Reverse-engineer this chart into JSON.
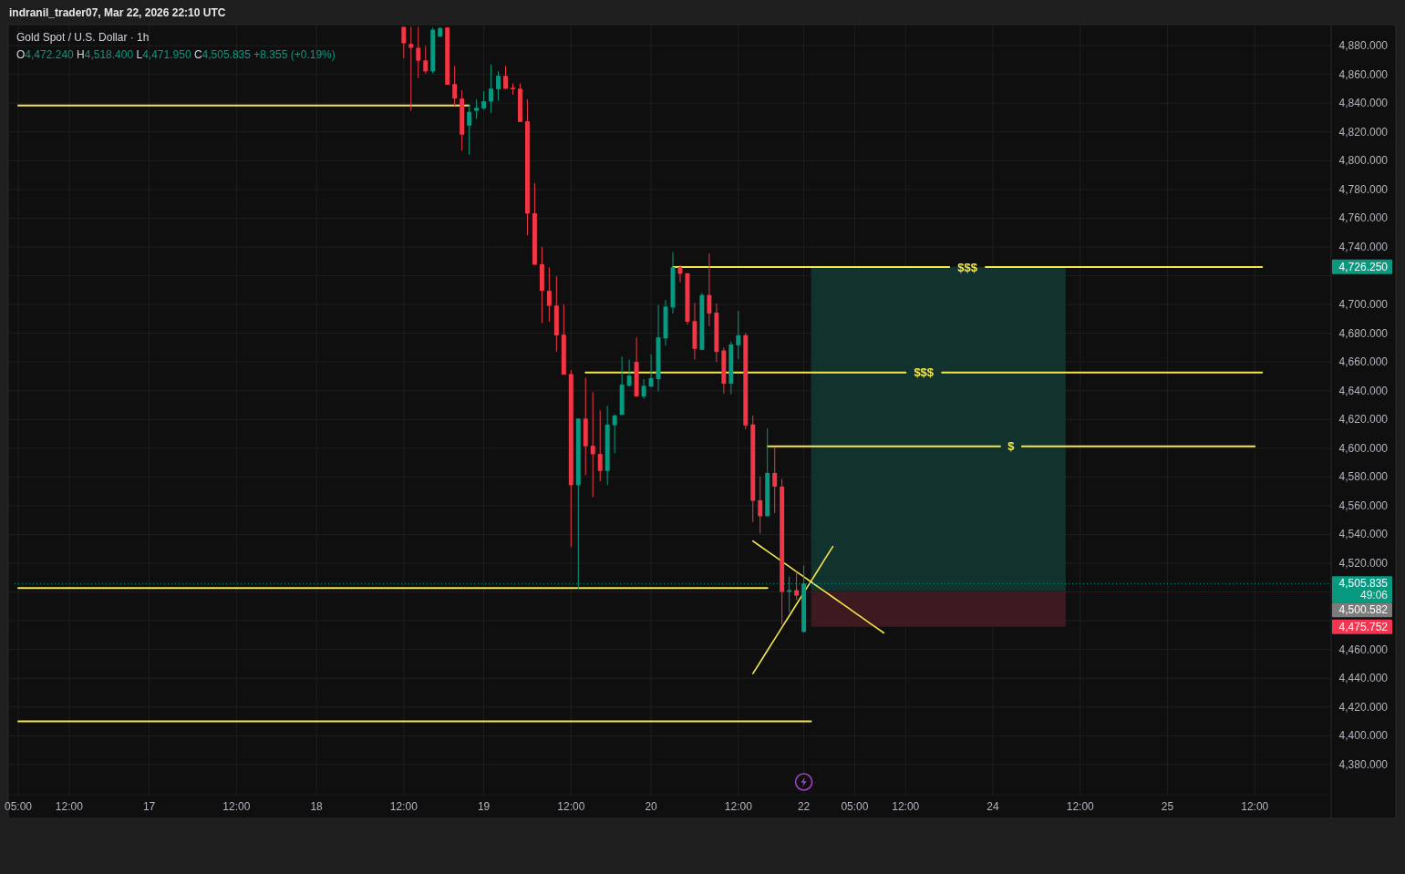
{
  "chart_data": {
    "type": "candlestick",
    "title": "Gold Spot / U.S. Dollar · 1h",
    "subtitle": "O4,472.240 H4,518.400 L4,471.950 C4,505.835 +8.355 (+0.19%)",
    "categories": [
      "05:00",
      null,
      null,
      null,
      null,
      null,
      null,
      "12:00",
      null,
      null,
      null,
      null,
      null,
      null,
      null,
      null,
      null,
      null,
      "17",
      null,
      null,
      null,
      null,
      null,
      null,
      null,
      null,
      null,
      null,
      null,
      "12:00",
      null,
      null,
      null,
      null,
      null,
      null,
      null,
      null,
      null,
      null,
      "18",
      null,
      null,
      null,
      null,
      null,
      null,
      null,
      null,
      null,
      null,
      null,
      "12:00",
      null,
      null,
      null,
      null,
      null,
      null,
      null,
      null,
      null,
      null,
      "19",
      null,
      null,
      null,
      null,
      null,
      null,
      null,
      null,
      null,
      null,
      null,
      "12:00",
      null,
      null,
      null,
      null,
      null,
      null,
      null,
      null,
      null,
      null,
      "20",
      null,
      null,
      null,
      null,
      null,
      null,
      null,
      null,
      null,
      null,
      null,
      "12:00",
      null,
      null,
      null,
      null,
      null,
      null,
      null,
      null,
      "22",
      null,
      null,
      null,
      null,
      null,
      null,
      "05:00",
      null,
      null,
      null,
      null,
      null,
      null,
      "12:00",
      null,
      null,
      null,
      null,
      null,
      null,
      null,
      null,
      null,
      null,
      null,
      "24",
      null,
      null,
      null,
      null,
      null,
      null,
      null,
      null,
      null,
      null,
      null,
      "12:00",
      null,
      null,
      null,
      null,
      null,
      null,
      null,
      null,
      null,
      null,
      null,
      "25",
      null,
      null,
      null,
      null,
      null,
      null,
      null,
      null,
      null,
      null,
      null,
      "12:00",
      null,
      null,
      null,
      null,
      null,
      null,
      null,
      null,
      null,
      null
    ],
    "ohlc": [
      null,
      null,
      null,
      null,
      null,
      null,
      null,
      null,
      null,
      null,
      null,
      null,
      null,
      null,
      null,
      null,
      null,
      null,
      null,
      null,
      null,
      null,
      null,
      null,
      null,
      null,
      null,
      null,
      null,
      null,
      null,
      null,
      null,
      null,
      null,
      null,
      null,
      null,
      null,
      null,
      null,
      null,
      null,
      null,
      null,
      null,
      null,
      null,
      null,
      null,
      null,
      null,
      null,
      [
        4893,
        4893,
        4871.2,
        4881.7
      ],
      [
        4881.2,
        4893,
        4834.7,
        4878.5
      ],
      [
        4878.5,
        4893,
        4857.5,
        4869.5
      ],
      [
        4869.7,
        4879.6,
        4860.6,
        4862.1
      ],
      [
        4862.1,
        4892.6,
        4860.6,
        4891.1
      ],
      [
        4886.3,
        4893,
        4885.9,
        4892.2
      ],
      [
        4892.6,
        4893,
        4852.8,
        4852.8
      ],
      [
        4853.3,
        4865.9,
        4837.9,
        4843.2
      ],
      [
        4843.2,
        4849.1,
        4807.0,
        4818.1
      ],
      [
        4824.4,
        4839.2,
        4804.2,
        4833.9
      ],
      [
        4834.7,
        4842.7,
        4829.1,
        4836.8
      ],
      [
        4836.4,
        4848.4,
        4835.4,
        4841.3
      ],
      [
        4841.1,
        4866.9,
        4833.3,
        4850.1
      ],
      [
        4849.7,
        4862.1,
        4841.7,
        4859.0
      ],
      [
        4859.0,
        4865.9,
        4849.7,
        4850.1
      ],
      [
        4850.7,
        4853.7,
        4845.9,
        4849.7
      ],
      [
        4850.1,
        4853.7,
        4826.9,
        4826.9
      ],
      [
        4827.4,
        4842.7,
        4748.0,
        4763.2
      ],
      [
        4763.4,
        4784.4,
        4727.6,
        4727.6
      ],
      [
        4728.0,
        4740.0,
        4687.0,
        4709.5
      ],
      [
        4709.5,
        4725.9,
        4688.0,
        4699.0
      ],
      [
        4699.2,
        4719.6,
        4667.0,
        4678.5
      ],
      [
        4679.0,
        4700.0,
        4651.2,
        4651.2
      ],
      [
        4651.6,
        4654.3,
        4531.2,
        4574.3
      ],
      [
        4574.3,
        4620.6,
        4502.1,
        4620.6
      ],
      [
        4620.6,
        4649.1,
        4581.3,
        4601.3
      ],
      [
        4601.7,
        4639.0,
        4565.9,
        4595.8
      ],
      [
        4596.0,
        4626.3,
        4576.9,
        4584.2
      ],
      [
        4584.2,
        4629.5,
        4574.3,
        4616.4
      ],
      [
        4616.0,
        4623.5,
        4596.4,
        4622.8
      ],
      [
        4623.2,
        4663.8,
        4623.2,
        4644.2
      ],
      [
        4643.4,
        4661.7,
        4642.8,
        4650.5
      ],
      [
        4660.0,
        4677.1,
        4636.0,
        4636.0
      ],
      [
        4636.0,
        4648.0,
        4634.3,
        4643.4
      ],
      [
        4642.8,
        4665.3,
        4642.8,
        4648.7
      ],
      [
        4648.0,
        4699.6,
        4639.6,
        4677.1
      ],
      [
        4676.4,
        4703.2,
        4671.2,
        4698.5
      ],
      [
        4697.9,
        4736.4,
        4693.7,
        4725.9
      ],
      [
        4725.9,
        4727.4,
        4715.4,
        4721.3
      ],
      [
        4721.7,
        4721.7,
        4685.9,
        4688.0
      ],
      [
        4688.4,
        4701.1,
        4661.7,
        4669.1
      ],
      [
        4668.4,
        4708.0,
        4668.4,
        4706.6
      ],
      [
        4706.6,
        4735.4,
        4684.9,
        4693.7
      ],
      [
        4694.3,
        4700.7,
        4660.0,
        4667.0
      ],
      [
        4668.0,
        4670.1,
        4638.1,
        4644.9
      ],
      [
        4644.9,
        4674.3,
        4637.5,
        4672.2
      ],
      [
        4671.6,
        4695.4,
        4662.1,
        4678.6
      ],
      [
        4678.6,
        4680.0,
        4613.3,
        4615.8
      ],
      [
        4616.5,
        4622.8,
        4548.5,
        4563.4
      ],
      [
        4563.8,
        4580.3,
        4540.7,
        4552.7
      ],
      [
        4552.7,
        4613.7,
        4552.7,
        4582.8
      ],
      [
        4582.8,
        4600.7,
        4554.8,
        4573.3
      ],
      [
        4573.3,
        4578.6,
        4477.5,
        4500.1
      ],
      [
        4500.1,
        4510.6,
        4485.9,
        4501.3
      ],
      [
        4501.3,
        4514.4,
        4494.4,
        4497.48
      ],
      [
        4472.24,
        4518.4,
        4471.95,
        4505.835
      ],
      null,
      null,
      null,
      null,
      null,
      null,
      null,
      null,
      null,
      null,
      null,
      null,
      null,
      null,
      null,
      null,
      null,
      null,
      null,
      null,
      null,
      null,
      null,
      null,
      null,
      null,
      null,
      null,
      null,
      null,
      null,
      null,
      null,
      null,
      null,
      null,
      null,
      null,
      null,
      null,
      null,
      null,
      null,
      null,
      null,
      null,
      null,
      null,
      null,
      null,
      null,
      null,
      null,
      null,
      null,
      null,
      null,
      null,
      null,
      null,
      null,
      null,
      null,
      null,
      null,
      null,
      null,
      null,
      null,
      null,
      null,
      null
    ],
    "colors": [
      null,
      null,
      null,
      null,
      null,
      null,
      null,
      null,
      null,
      null,
      null,
      null,
      null,
      null,
      null,
      null,
      null,
      null,
      null,
      null,
      null,
      null,
      null,
      null,
      null,
      null,
      null,
      null,
      null,
      null,
      null,
      null,
      null,
      null,
      null,
      null,
      null,
      null,
      null,
      null,
      null,
      null,
      null,
      null,
      null,
      null,
      null,
      null,
      null,
      null,
      null,
      null,
      null,
      "#f23645",
      "#f23645",
      "#f23645",
      "#f23645",
      "#089981",
      "#089981",
      "#f23645",
      "#f23645",
      "#f23645",
      "#089981",
      "#089981",
      "#089981",
      "#089981",
      "#089981",
      "#f23645",
      "#f23645",
      "#f23645",
      "#f23645",
      "#f23645",
      "#f23645",
      "#f23645",
      "#f23645",
      "#f23645",
      "#f23645",
      "#089981",
      "#f23645",
      "#f23645",
      "#f23645",
      "#089981",
      "#089981",
      "#089981",
      "#089981",
      "#f23645",
      "#089981",
      "#089981",
      "#089981",
      "#089981",
      "#089981",
      "#f23645",
      "#f23645",
      "#f23645",
      "#089981",
      "#f23645",
      "#f23645",
      "#f23645",
      "#089981",
      "#089981",
      "#f23645",
      "#f23645",
      "#f23645",
      "#089981",
      "#f23645",
      "#f23645",
      "#089981",
      "#f23645",
      "#089981",
      null,
      null,
      null,
      null,
      null,
      null,
      null,
      null,
      null,
      null,
      null,
      null,
      null,
      null,
      null,
      null,
      null,
      null,
      null,
      null,
      null,
      null,
      null,
      null,
      null,
      null,
      null,
      null,
      null,
      null,
      null,
      null,
      null,
      null,
      null,
      null,
      null,
      null,
      null,
      null,
      null,
      null,
      null,
      null,
      null,
      null,
      null,
      null,
      null,
      null,
      null,
      null,
      null,
      null,
      null,
      null,
      null,
      null,
      null,
      null,
      null,
      null,
      null,
      null,
      null,
      null,
      null,
      null,
      null,
      null,
      null,
      null
    ],
    "series": [
      {
        "type": "line",
        "color": "#f5e64c",
        "values": [
          4838.3,
          4838.3,
          4838.3,
          4838.3,
          4838.3,
          4838.3,
          4838.3,
          4838.3,
          4838.3,
          4838.3,
          4838.3,
          4838.3,
          4838.3,
          4838.3,
          4838.3,
          4838.3,
          4838.3,
          4838.3,
          4838.3,
          4838.3,
          4838.3,
          4838.3,
          4838.3,
          4838.3,
          4838.3,
          4838.3,
          4838.3,
          4838.3,
          4838.3,
          4838.3,
          4838.3,
          4838.3,
          4838.3,
          4838.3,
          4838.3,
          4838.3,
          4838.3,
          4838.3,
          4838.3,
          4838.3,
          4838.3,
          4838.3,
          4838.3,
          4838.3,
          4838.3,
          4838.3,
          4838.3,
          4838.3,
          4838.3,
          4838.3,
          4838.3,
          4838.3,
          4838.3,
          4838.3,
          4838.3,
          4838.3,
          4838.3,
          4838.3,
          4838.3,
          4838.3,
          4838.3,
          4838.3,
          4838.3,
          null,
          null,
          null,
          null,
          null,
          null,
          null,
          null,
          null,
          null,
          null,
          null,
          null,
          null,
          null,
          null,
          null,
          null,
          null,
          null,
          null,
          null,
          null,
          null,
          null,
          null,
          null,
          null,
          null,
          null,
          null,
          null,
          null,
          null,
          null,
          null,
          null,
          null,
          null,
          null,
          null,
          null,
          null,
          null,
          null,
          null,
          null,
          null,
          null,
          null,
          null,
          null,
          null,
          null,
          null,
          null,
          null,
          null,
          null,
          null,
          null,
          null,
          null,
          null,
          null,
          null,
          null,
          null,
          null,
          null,
          null,
          null,
          null,
          null,
          null,
          null,
          null,
          null,
          null,
          null,
          null,
          null,
          null,
          null,
          null,
          null,
          null,
          null,
          null,
          null,
          null,
          null,
          null,
          null,
          null,
          null,
          null,
          null,
          null,
          null,
          null,
          null,
          null,
          null,
          null,
          null,
          null,
          null,
          null,
          null,
          null,
          null,
          null,
          null,
          null,
          null,
          null,
          null
        ]
      },
      {
        "type": "line",
        "name": "$$$",
        "color": "#f5e64c",
        "values": [
          null,
          null,
          null,
          null,
          null,
          null,
          null,
          null,
          null,
          null,
          null,
          null,
          null,
          null,
          null,
          null,
          null,
          null,
          null,
          null,
          null,
          null,
          null,
          null,
          null,
          null,
          null,
          null,
          null,
          null,
          null,
          null,
          null,
          null,
          null,
          null,
          null,
          null,
          null,
          null,
          null,
          null,
          null,
          null,
          null,
          null,
          null,
          null,
          null,
          null,
          null,
          null,
          null,
          null,
          null,
          null,
          null,
          null,
          null,
          null,
          null,
          null,
          null,
          null,
          null,
          null,
          null,
          null,
          null,
          null,
          null,
          null,
          null,
          null,
          null,
          null,
          null,
          null,
          null,
          null,
          null,
          null,
          null,
          null,
          null,
          null,
          null,
          null,
          null,
          null,
          4726,
          4726,
          4726,
          4726,
          4726,
          4726,
          4726,
          4726,
          4726,
          4726,
          4726,
          4726,
          4726,
          4726,
          4726,
          4726,
          4726,
          4726,
          4726,
          4726,
          4726,
          4726,
          4726,
          4726,
          4726,
          4726,
          4726,
          4726,
          4726,
          4726,
          4726,
          4726,
          4726,
          4726,
          4726,
          4726,
          4726,
          4726,
          4726,
          null,
          null,
          null,
          null,
          4726,
          4726,
          4726,
          4726,
          4726,
          4726,
          4726,
          4726,
          4726,
          4726,
          4726,
          4726,
          4726,
          4726,
          4726,
          4726,
          4726,
          4726,
          4726,
          4726,
          4726,
          4726,
          4726,
          4726,
          4726,
          4726,
          4726,
          4726,
          4726,
          4726,
          4726,
          4726,
          4726,
          4726,
          4726,
          4726,
          4726,
          4726,
          4726,
          null,
          null,
          null,
          null,
          null,
          null,
          null,
          null,
          null
        ]
      },
      {
        "type": "line",
        "name": "$$$",
        "color": "#f5e64c",
        "values": [
          null,
          null,
          null,
          null,
          null,
          null,
          null,
          null,
          null,
          null,
          null,
          null,
          null,
          null,
          null,
          null,
          null,
          null,
          null,
          null,
          null,
          null,
          null,
          null,
          null,
          null,
          null,
          null,
          null,
          null,
          null,
          null,
          null,
          null,
          null,
          null,
          null,
          null,
          null,
          null,
          null,
          null,
          null,
          null,
          null,
          null,
          null,
          null,
          null,
          null,
          null,
          null,
          null,
          null,
          null,
          null,
          null,
          null,
          null,
          null,
          null,
          null,
          null,
          null,
          null,
          null,
          null,
          null,
          null,
          null,
          null,
          null,
          null,
          null,
          null,
          null,
          null,
          null,
          4652.6,
          4652.6,
          4652.6,
          4652.6,
          4652.6,
          4652.6,
          4652.6,
          4652.6,
          4652.6,
          4652.6,
          4652.6,
          4652.6,
          4652.6,
          4652.6,
          4652.6,
          4652.6,
          4652.6,
          4652.6,
          4652.6,
          4652.6,
          4652.6,
          4652.6,
          4652.6,
          4652.6,
          4652.6,
          4652.6,
          4652.6,
          4652.6,
          4652.6,
          4652.6,
          4652.6,
          4652.6,
          4652.6,
          4652.6,
          4652.6,
          4652.6,
          4652.6,
          4652.6,
          4652.6,
          4652.6,
          4652.6,
          4652.6,
          4652.6,
          4652.6,
          4652.6,
          null,
          null,
          null,
          null,
          4652.6,
          4652.6,
          4652.6,
          4652.6,
          4652.6,
          4652.6,
          4652.6,
          4652.6,
          4652.6,
          4652.6,
          4652.6,
          4652.6,
          4652.6,
          4652.6,
          4652.6,
          4652.6,
          4652.6,
          4652.6,
          4652.6,
          4652.6,
          4652.6,
          4652.6,
          4652.6,
          4652.6,
          4652.6,
          4652.6,
          4652.6,
          4652.6,
          4652.6,
          4652.6,
          4652.6,
          4652.6,
          4652.6,
          4652.6,
          4652.6,
          4652.6,
          4652.6,
          4652.6,
          4652.6,
          4652.6,
          4652.6,
          4652.6,
          4652.6,
          4652.6,
          4652.6,
          null,
          null,
          null,
          null,
          null,
          null,
          null,
          null,
          null
        ]
      },
      {
        "type": "line",
        "name": "$",
        "color": "#f5e64c",
        "values": [
          null,
          null,
          null,
          null,
          null,
          null,
          null,
          null,
          null,
          null,
          null,
          null,
          null,
          null,
          null,
          null,
          null,
          null,
          null,
          null,
          null,
          null,
          null,
          null,
          null,
          null,
          null,
          null,
          null,
          null,
          null,
          null,
          null,
          null,
          null,
          null,
          null,
          null,
          null,
          null,
          null,
          null,
          null,
          null,
          null,
          null,
          null,
          null,
          null,
          null,
          null,
          null,
          null,
          null,
          null,
          null,
          null,
          null,
          null,
          null,
          null,
          null,
          null,
          null,
          null,
          null,
          null,
          null,
          null,
          null,
          null,
          null,
          null,
          null,
          null,
          null,
          null,
          null,
          null,
          null,
          null,
          null,
          null,
          null,
          null,
          null,
          null,
          null,
          null,
          null,
          null,
          null,
          null,
          null,
          null,
          null,
          null,
          null,
          null,
          null,
          null,
          null,
          null,
          4601.3,
          4601.3,
          4601.3,
          4601.3,
          4601.3,
          4601.3,
          4601.3,
          4601.3,
          4601.3,
          4601.3,
          4601.3,
          4601.3,
          4601.3,
          4601.3,
          4601.3,
          4601.3,
          4601.3,
          4601.3,
          4601.3,
          4601.3,
          4601.3,
          4601.3,
          4601.3,
          4601.3,
          4601.3,
          4601.3,
          4601.3,
          4601.3,
          4601.3,
          4601.3,
          4601.3,
          4601.3,
          4601.3,
          null,
          null,
          4601.3,
          4601.3,
          4601.3,
          4601.3,
          4601.3,
          4601.3,
          4601.3,
          4601.3,
          4601.3,
          4601.3,
          4601.3,
          4601.3,
          4601.3,
          4601.3,
          4601.3,
          4601.3,
          4601.3,
          4601.3,
          4601.3,
          4601.3,
          4601.3,
          4601.3,
          4601.3,
          4601.3,
          4601.3,
          4601.3,
          4601.3,
          4601.3,
          4601.3,
          4601.3,
          4601.3,
          4601.3,
          4601.3,
          null,
          null,
          null,
          null,
          null,
          null,
          null,
          null,
          null,
          null
        ]
      },
      {
        "type": "line",
        "color": "#f5e64c",
        "values": [
          4502.8,
          4502.8,
          4502.8,
          4502.8,
          4502.8,
          4502.8,
          4502.8,
          4502.8,
          4502.8,
          4502.8,
          4502.8,
          4502.8,
          4502.8,
          4502.8,
          4502.8,
          4502.8,
          4502.8,
          4502.8,
          4502.8,
          4502.8,
          4502.8,
          4502.8,
          4502.8,
          4502.8,
          4502.8,
          4502.8,
          4502.8,
          4502.8,
          4502.8,
          4502.8,
          4502.8,
          4502.8,
          4502.8,
          4502.8,
          4502.8,
          4502.8,
          4502.8,
          4502.8,
          4502.8,
          4502.8,
          4502.8,
          4502.8,
          4502.8,
          4502.8,
          4502.8,
          4502.8,
          4502.8,
          4502.8,
          4502.8,
          4502.8,
          4502.8,
          4502.8,
          4502.8,
          4502.8,
          4502.8,
          4502.8,
          4502.8,
          4502.8,
          4502.8,
          4502.8,
          4502.8,
          4502.8,
          4502.8,
          4502.8,
          4502.8,
          4502.8,
          4502.8,
          4502.8,
          4502.8,
          4502.8,
          4502.8,
          4502.8,
          4502.8,
          4502.8,
          4502.8,
          4502.8,
          4502.8,
          4502.8,
          4502.8,
          4502.8,
          4502.8,
          4502.8,
          4502.8,
          4502.8,
          4502.8,
          4502.8,
          4502.8,
          4502.8,
          4502.8,
          4502.8,
          4502.8,
          4502.8,
          4502.8,
          4502.8,
          4502.8,
          4502.8,
          4502.8,
          4502.8,
          4502.8,
          4502.8,
          4502.8,
          4502.8,
          4502.8,
          4502.8,
          null,
          null,
          null,
          null,
          null,
          null,
          null,
          null,
          null,
          null,
          null,
          null,
          null,
          null,
          null,
          null,
          null,
          null,
          null,
          null,
          null,
          null,
          null,
          null,
          null,
          null,
          null,
          null,
          null,
          null,
          null,
          null,
          null,
          null,
          null,
          null,
          null,
          null,
          null,
          null,
          null,
          null,
          null,
          null,
          null,
          null,
          null,
          null,
          null,
          null,
          null,
          null,
          null,
          null,
          null,
          null,
          null,
          null,
          null,
          null,
          null,
          null,
          null,
          null,
          null,
          null,
          null,
          null,
          null,
          null,
          null,
          null,
          null,
          null,
          null,
          null,
          null
        ]
      },
      {
        "type": "line",
        "color": "#f5e64c",
        "values": [
          4410,
          4410,
          4410,
          4410,
          4410,
          4410,
          4410,
          4410,
          4410,
          4410,
          4410,
          4410,
          4410,
          4410,
          4410,
          4410,
          4410,
          4410,
          4410,
          4410,
          4410,
          4410,
          4410,
          4410,
          4410,
          4410,
          4410,
          4410,
          4410,
          4410,
          4410,
          4410,
          4410,
          4410,
          4410,
          4410,
          4410,
          4410,
          4410,
          4410,
          4410,
          4410,
          4410,
          4410,
          4410,
          4410,
          4410,
          4410,
          4410,
          4410,
          4410,
          4410,
          4410,
          4410,
          4410,
          4410,
          4410,
          4410,
          4410,
          4410,
          4410,
          4410,
          4410,
          4410,
          4410,
          4410,
          4410,
          4410,
          4410,
          4410,
          4410,
          4410,
          4410,
          4410,
          4410,
          4410,
          4410,
          4410,
          4410,
          4410,
          4410,
          4410,
          4410,
          4410,
          4410,
          4410,
          4410,
          4410,
          4410,
          4410,
          4410,
          4410,
          4410,
          4410,
          4410,
          4410,
          4410,
          4410,
          4410,
          4410,
          4410,
          4410,
          4410,
          4410,
          4410,
          4410,
          4410,
          4410,
          4410,
          4410,
          null,
          null,
          null,
          null,
          null,
          null,
          null,
          null,
          null,
          null,
          null,
          null,
          null,
          null,
          null,
          null,
          null,
          null,
          null,
          null,
          null,
          null,
          null,
          null,
          null,
          null,
          null,
          null,
          null,
          null,
          null,
          null,
          null,
          null,
          null,
          null,
          null,
          null,
          null,
          null,
          null,
          null,
          null,
          null,
          null,
          null,
          null,
          null,
          null,
          null,
          null,
          null,
          null,
          null,
          null,
          null,
          null,
          null,
          null,
          null,
          null,
          null,
          null,
          null,
          null,
          null,
          null,
          null,
          null,
          null,
          null
        ]
      },
      {
        "type": "line",
        "color": "#f5e64c",
        "values": [
          null,
          null,
          null,
          null,
          null,
          null,
          null,
          null,
          null,
          null,
          null,
          null,
          null,
          null,
          null,
          null,
          null,
          null,
          null,
          null,
          null,
          null,
          null,
          null,
          null,
          null,
          null,
          null,
          null,
          null,
          null,
          null,
          null,
          null,
          null,
          null,
          null,
          null,
          null,
          null,
          null,
          null,
          null,
          null,
          null,
          null,
          null,
          null,
          null,
          null,
          null,
          null,
          null,
          null,
          null,
          null,
          null,
          null,
          null,
          null,
          null,
          null,
          null,
          null,
          null,
          null,
          null,
          null,
          null,
          null,
          null,
          null,
          null,
          null,
          null,
          null,
          null,
          null,
          null,
          null,
          null,
          null,
          null,
          null,
          null,
          null,
          null,
          null,
          null,
          null,
          null,
          null,
          null,
          null,
          null,
          null,
          null,
          null,
          null,
          null,
          null,
          4535.5,
          4531.9,
          4528.3,
          4524.8,
          4521.2,
          4517.7,
          4514.1,
          4510.6,
          4507.0,
          4503.5,
          4499.9,
          4496.4,
          4492.8,
          4489.3,
          4485.7,
          4482.2,
          4478.6,
          4475.1,
          4471.5,
          null,
          null,
          null,
          null,
          null,
          null,
          null,
          null,
          null,
          null,
          null,
          null,
          null,
          null,
          null,
          null,
          null,
          null,
          null,
          null,
          null,
          null,
          null,
          null,
          null,
          null,
          null,
          null,
          null,
          null,
          null,
          null,
          null,
          null,
          null,
          null,
          null,
          null,
          null,
          null,
          null,
          null,
          null,
          null,
          null,
          null,
          null,
          null,
          null,
          null,
          null,
          null,
          null,
          null,
          null,
          null,
          null,
          null,
          null,
          null,
          null
        ]
      },
      {
        "type": "line",
        "color": "#f5e64c",
        "values": [
          null,
          null,
          null,
          null,
          null,
          null,
          null,
          null,
          null,
          null,
          null,
          null,
          null,
          null,
          null,
          null,
          null,
          null,
          null,
          null,
          null,
          null,
          null,
          null,
          null,
          null,
          null,
          null,
          null,
          null,
          null,
          null,
          null,
          null,
          null,
          null,
          null,
          null,
          null,
          null,
          null,
          null,
          null,
          null,
          null,
          null,
          null,
          null,
          null,
          null,
          null,
          null,
          null,
          null,
          null,
          null,
          null,
          null,
          null,
          null,
          null,
          null,
          null,
          null,
          null,
          null,
          null,
          null,
          null,
          null,
          null,
          null,
          null,
          null,
          null,
          null,
          null,
          null,
          null,
          null,
          null,
          null,
          null,
          null,
          null,
          null,
          null,
          null,
          null,
          null,
          null,
          null,
          null,
          null,
          null,
          null,
          null,
          null,
          null,
          null,
          null,
          4443.2,
          4451.2,
          4459.3,
          4467.3,
          4475.4,
          4483.4,
          4491.5,
          4499.5,
          4507.6,
          4515.6,
          4523.7,
          4531.7,
          null,
          null,
          null,
          null,
          null,
          null,
          null,
          null,
          null,
          null,
          null,
          null,
          null,
          null,
          null,
          null,
          null,
          null,
          null,
          null,
          null,
          null,
          null,
          null,
          null,
          null,
          null,
          null,
          null,
          null,
          null,
          null,
          null,
          null,
          null,
          null,
          null,
          null,
          null,
          null,
          null,
          null,
          null,
          null,
          null,
          null,
          null,
          null,
          null,
          null,
          null,
          null,
          null,
          null,
          null,
          null,
          null,
          null,
          null,
          null,
          null,
          null,
          null,
          null,
          null,
          null,
          null,
          null
        ]
      }
    ],
    "ylim": [
      4359,
      4894
    ],
    "yticks": [
      {
        "value": 4380,
        "label": "4,380.000"
      },
      {
        "value": 4400,
        "label": "4,400.000"
      },
      {
        "value": 4420,
        "label": "4,420.000"
      },
      {
        "value": 4440,
        "label": "4,440.000"
      },
      {
        "value": 4460,
        "label": "4,460.000"
      },
      {
        "value": 4480,
        "label": null
      },
      {
        "value": 4500,
        "label": null
      },
      {
        "value": 4520,
        "label": "4,520.000"
      },
      {
        "value": 4540,
        "label": "4,540.000"
      },
      {
        "value": 4560,
        "label": "4,560.000"
      },
      {
        "value": 4580,
        "label": "4,580.000"
      },
      {
        "value": 4600,
        "label": "4,600.000"
      },
      {
        "value": 4620,
        "label": "4,620.000"
      },
      {
        "value": 4640,
        "label": "4,640.000"
      },
      {
        "value": 4660,
        "label": "4,660.000"
      },
      {
        "value": 4680,
        "label": "4,680.000"
      },
      {
        "value": 4700,
        "label": "4,700.000"
      },
      {
        "value": 4720,
        "label": null
      },
      {
        "value": 4740,
        "label": "4,740.000"
      },
      {
        "value": 4760,
        "label": "4,760.000"
      },
      {
        "value": 4780,
        "label": "4,780.000"
      },
      {
        "value": 4800,
        "label": "4,800.000"
      },
      {
        "value": 4820,
        "label": "4,820.000"
      },
      {
        "value": 4840,
        "label": "4,840.000"
      },
      {
        "value": 4860,
        "label": "4,860.000"
      },
      {
        "value": 4880,
        "label": "4,880.000"
      }
    ],
    "grid": true,
    "ref_lines": [
      {
        "axis": "y",
        "value": 4505.835,
        "label": "4,505.835",
        "color": "#089981",
        "line_style": "dotted"
      }
    ],
    "bands": [
      {
        "axis": "y",
        "from": 4500.582,
        "to": 4726.25,
        "color": "#12332d"
      },
      {
        "axis": "y",
        "from": 4500.582,
        "to": 4475.752,
        "color": "#3d1a1f"
      }
    ],
    "annotations": [
      "indranil_trader07, Mar 22, 2026 22:10 UTC",
      "49:06",
      "4,500.582",
      "4,726.250",
      "4,475.752"
    ]
  }
}
